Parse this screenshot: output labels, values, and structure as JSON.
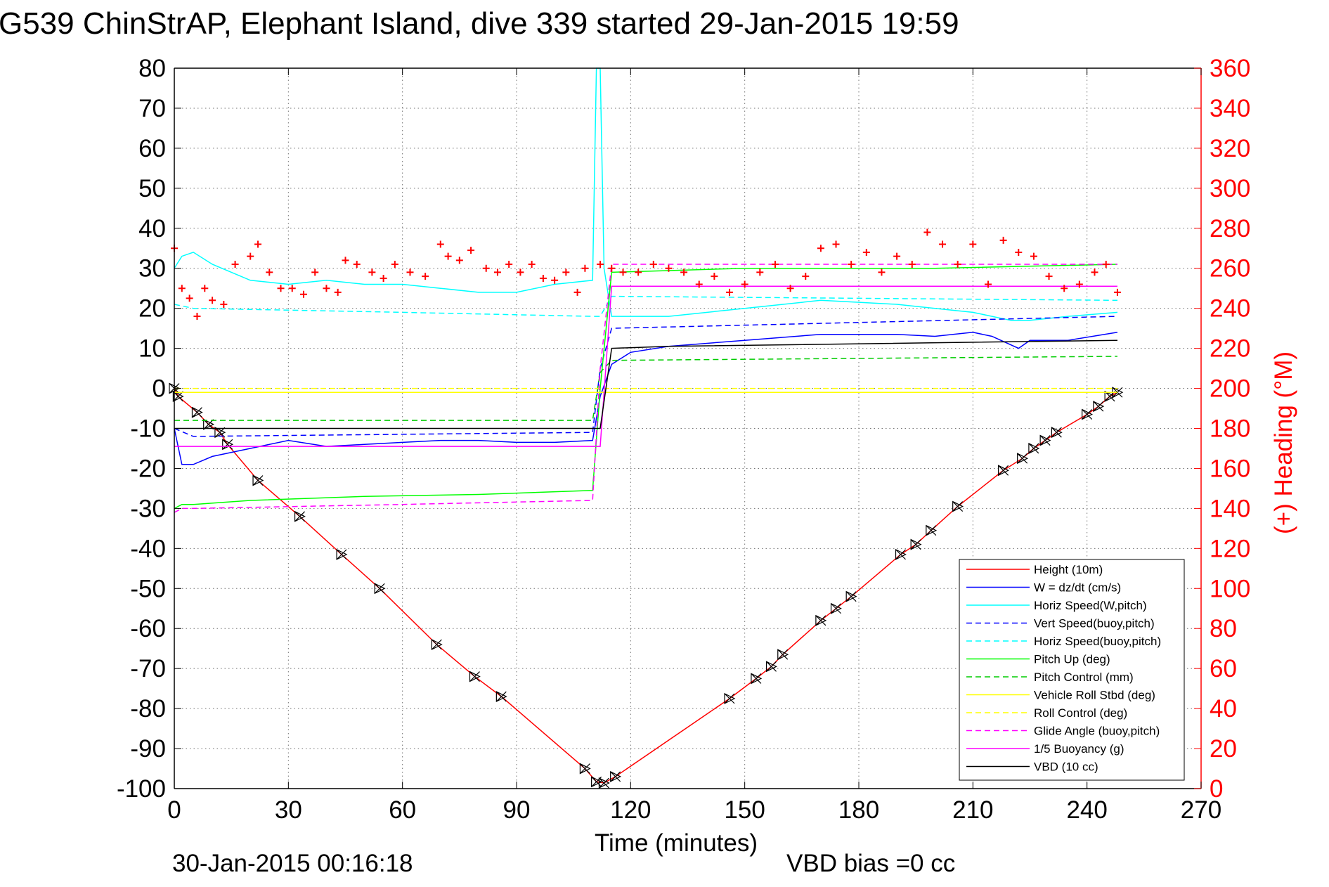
{
  "page": {
    "title": "G539 ChinStrAP, Elephant Island, dive 339 started 29-Jan-2015 19:59",
    "end_time": "30-Jan-2015 00:16:18",
    "vbd_bias": "VBD bias =0 cc"
  },
  "chart_data": {
    "type": "line",
    "title": "G539 ChinStrAP, Elephant Island, dive 339 started 29-Jan-2015 19:59",
    "xlabel": "Time (minutes)",
    "ylabel": "",
    "y2label": "(+) Heading (°M)",
    "xlim": [
      0,
      270
    ],
    "ylim": [
      -100,
      80
    ],
    "y2lim": [
      0,
      360
    ],
    "xticks": [
      0,
      30,
      60,
      90,
      120,
      150,
      180,
      210,
      240,
      270
    ],
    "yticks": [
      80,
      70,
      60,
      50,
      40,
      30,
      20,
      10,
      0,
      -10,
      -20,
      -30,
      -40,
      -50,
      -60,
      -70,
      -80,
      -90,
      -100
    ],
    "y2ticks": [
      360,
      340,
      320,
      300,
      280,
      260,
      240,
      220,
      200,
      180,
      160,
      140,
      120,
      100,
      80,
      60,
      40,
      20,
      0
    ],
    "grid": true,
    "legend_position": "bottom-right",
    "colors": {
      "height": "#ff0000",
      "w": "#0000ff",
      "horiz_speed_w": "#00ffff",
      "vert_speed_buoy": "#0000ff",
      "horiz_speed_buoy": "#00ffff",
      "pitch_up": "#00ff00",
      "pitch_control": "#00cc00",
      "roll": "#ffff00",
      "roll_control": "#ffff00",
      "glide_angle": "#ff00ff",
      "buoyancy": "#ff00ff",
      "vbd": "#000000",
      "heading": "#ff0000"
    },
    "series": [
      {
        "name": "Height (10m)",
        "key": "height",
        "style": "solid",
        "marker": "triangle-x",
        "x": [
          0,
          1,
          6,
          9,
          12,
          14,
          22,
          33,
          44,
          54,
          69,
          79,
          86,
          108,
          111,
          113,
          116,
          146,
          153,
          157,
          160,
          170,
          174,
          178,
          191,
          195,
          199,
          206,
          218,
          223,
          226,
          229,
          232,
          240,
          243,
          246,
          248
        ],
        "y": [
          0,
          -2,
          -6,
          -9,
          -11,
          -14,
          -23,
          -32,
          -41.5,
          -50,
          -64,
          -72,
          -77,
          -95,
          -98.3,
          -98.6,
          -97,
          -77.5,
          -72.5,
          -69.5,
          -66.5,
          -58,
          -55,
          -52,
          -41.5,
          -39,
          -35.5,
          -29.5,
          -20.5,
          -17.5,
          -15,
          -13,
          -11,
          -6.5,
          -4.5,
          -2,
          -1
        ]
      },
      {
        "name": "W = dz/dt (cm/s)",
        "key": "w",
        "style": "solid",
        "x": [
          0,
          2,
          5,
          10,
          20,
          30,
          40,
          50,
          60,
          70,
          80,
          90,
          100,
          110,
          112,
          115,
          120,
          130,
          150,
          170,
          190,
          200,
          210,
          215,
          222,
          225,
          235,
          248
        ],
        "y": [
          -10,
          -19,
          -19,
          -17,
          -15,
          -13,
          -14.5,
          -14,
          -13.5,
          -13,
          -13,
          -13.5,
          -13.5,
          -13,
          -2,
          6,
          9,
          10.5,
          12,
          13.5,
          13.5,
          13,
          14,
          13,
          10,
          12,
          12,
          14
        ]
      },
      {
        "name": "Horiz Speed(W,pitch)",
        "key": "horiz_speed_w",
        "style": "solid",
        "x": [
          0,
          2,
          5,
          10,
          20,
          30,
          40,
          50,
          60,
          70,
          80,
          90,
          100,
          110,
          111,
          112,
          113,
          115,
          120,
          130,
          150,
          170,
          190,
          200,
          210,
          220,
          225,
          235,
          248
        ],
        "y": [
          30,
          33,
          34,
          31,
          27,
          26,
          27,
          26,
          26,
          25,
          24,
          24,
          26,
          27,
          80,
          80,
          30,
          18,
          18,
          18,
          20,
          22,
          21,
          20,
          19,
          17,
          17,
          18,
          19
        ]
      },
      {
        "name": "Vert Speed(buoy,pitch)",
        "key": "vert_speed_buoy",
        "style": "dashed",
        "x": [
          0,
          5,
          110,
          112,
          115,
          248
        ],
        "y": [
          -10,
          -12,
          -11,
          5,
          15,
          18
        ]
      },
      {
        "name": "Horiz Speed(buoy,pitch)",
        "key": "horiz_speed_buoy",
        "style": "dashed",
        "x": [
          0,
          5,
          60,
          110,
          112,
          115,
          248
        ],
        "y": [
          21,
          20,
          19,
          18,
          18,
          23,
          22
        ]
      },
      {
        "name": "Pitch Up (deg)",
        "key": "pitch_up",
        "style": "solid",
        "x": [
          0,
          2,
          5,
          20,
          50,
          80,
          110,
          112,
          115,
          150,
          200,
          248
        ],
        "y": [
          -30,
          -29,
          -29,
          -28,
          -27,
          -26.5,
          -25.5,
          0,
          29,
          30,
          30,
          31
        ]
      },
      {
        "name": "Pitch Control (mm)",
        "key": "pitch_control",
        "style": "dashed",
        "x": [
          0,
          5,
          110,
          112,
          115,
          248
        ],
        "y": [
          -8,
          -8,
          -8,
          4,
          7,
          8
        ]
      },
      {
        "name": "Vehicle Roll Stbd (deg)",
        "key": "roll",
        "style": "solid",
        "x": [
          0,
          5,
          30,
          60,
          90,
          110,
          150,
          180,
          210,
          248
        ],
        "y": [
          -1,
          -1,
          -1,
          -1,
          -1,
          -1,
          -1,
          -1,
          -1,
          -1
        ]
      },
      {
        "name": "Roll Control (deg)",
        "key": "roll_control",
        "style": "dashed",
        "x": [
          0,
          248
        ],
        "y": [
          0,
          0
        ]
      },
      {
        "name": "Glide Angle (buoy,pitch)",
        "key": "glide_angle",
        "style": "dashed",
        "x": [
          0,
          2,
          5,
          60,
          110,
          112,
          115,
          248
        ],
        "y": [
          -31,
          -30,
          -30,
          -29,
          -28,
          5,
          31,
          31
        ]
      },
      {
        "name": "1/5 Buoyancy (g)",
        "key": "buoyancy",
        "style": "solid",
        "x": [
          0,
          112,
          115,
          248
        ],
        "y": [
          -14.5,
          -14.5,
          25.5,
          25.5
        ]
      },
      {
        "name": "VBD (10 cc)",
        "key": "vbd",
        "style": "solid",
        "x": [
          0,
          112,
          115,
          130,
          248
        ],
        "y": [
          -10,
          -10,
          10,
          10.5,
          12
        ]
      },
      {
        "name": "",
        "key": "heading",
        "style": "markers",
        "axis": "right",
        "marker": "plus",
        "x": [
          0,
          2,
          4,
          6,
          8,
          10,
          13,
          16,
          20,
          22,
          25,
          28,
          31,
          34,
          37,
          40,
          43,
          45,
          48,
          52,
          55,
          58,
          62,
          66,
          70,
          72,
          75,
          78,
          82,
          85,
          88,
          91,
          94,
          97,
          100,
          103,
          106,
          108,
          112,
          115,
          118,
          122,
          126,
          130,
          134,
          138,
          142,
          146,
          150,
          154,
          158,
          162,
          166,
          170,
          174,
          178,
          182,
          186,
          190,
          194,
          198,
          202,
          206,
          210,
          214,
          218,
          222,
          226,
          230,
          234,
          238,
          242,
          245,
          248
        ],
        "y": [
          270,
          250,
          245,
          236,
          250,
          244,
          242,
          262,
          266,
          272,
          258,
          250,
          250,
          247,
          258,
          250,
          248,
          264,
          262,
          258,
          255,
          262,
          258,
          256,
          272,
          266,
          264,
          269,
          260,
          258,
          262,
          258,
          262,
          255,
          254,
          258,
          248,
          260,
          262,
          260,
          258,
          258,
          262,
          260,
          258,
          252,
          256,
          248,
          252,
          258,
          262,
          250,
          256,
          270,
          272,
          262,
          268,
          258,
          266,
          262,
          278,
          272,
          262,
          272,
          252,
          274,
          268,
          266,
          256,
          250,
          252,
          258,
          262,
          248
        ]
      }
    ]
  }
}
